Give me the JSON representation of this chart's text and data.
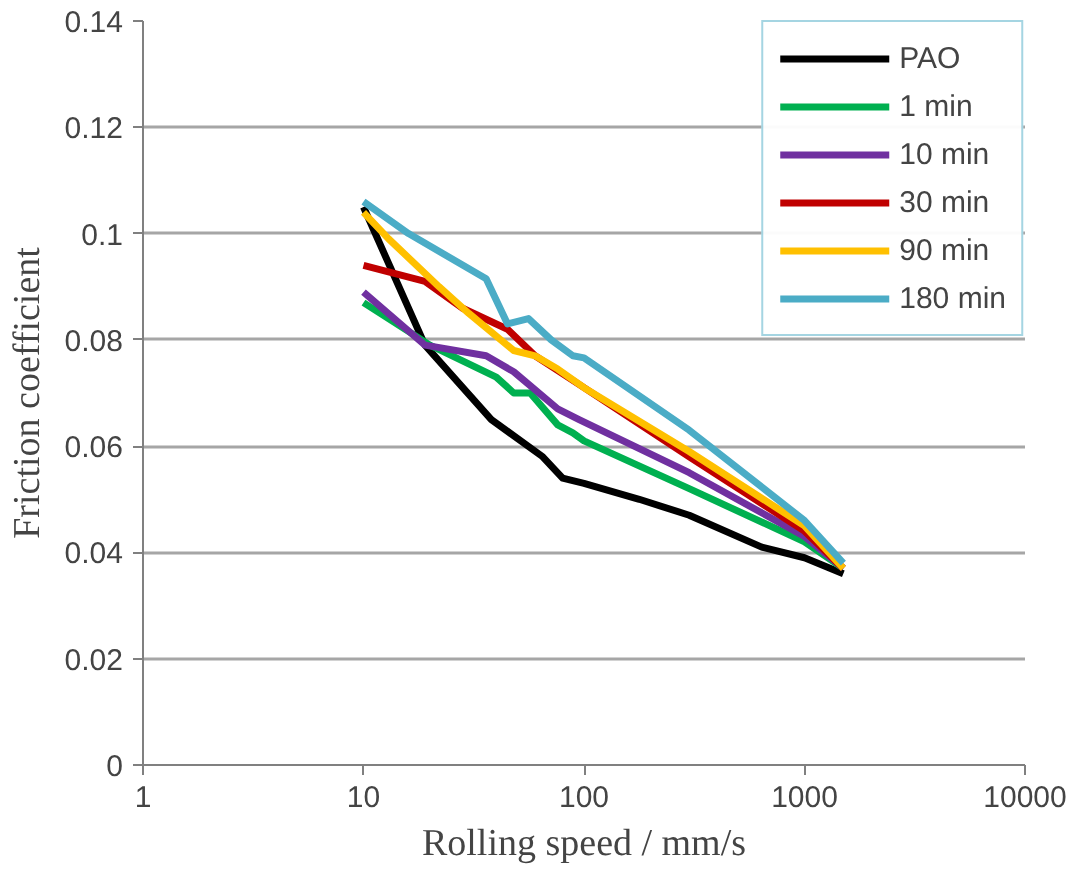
{
  "chart_data": {
    "type": "line",
    "xlabel": "Rolling speed / mm/s",
    "ylabel": "Friction coefficient",
    "log": "x",
    "grid": "y",
    "legend": "top right",
    "marker": "none",
    "line_style": "solid",
    "xlim": [
      1,
      10000
    ],
    "xticks": [
      1,
      10,
      100,
      1000,
      10000
    ],
    "ylim": [
      0,
      0.14
    ],
    "yticks": [
      0,
      0.02,
      0.04,
      0.06,
      0.08,
      0.1,
      0.12,
      0.14
    ],
    "series": [
      {
        "name": "PAO",
        "color": "#000000",
        "x": [
          10,
          19,
          38,
          65,
          80,
          100,
          178,
          300,
          640,
          1000,
          1500
        ],
        "values": [
          0.105,
          0.079,
          0.065,
          0.058,
          0.054,
          0.053,
          0.05,
          0.047,
          0.041,
          0.039,
          0.036
        ]
      },
      {
        "name": "1 min",
        "color": "#00b050",
        "x": [
          10,
          20,
          40,
          48,
          57,
          76,
          89,
          100,
          300,
          1000,
          1500
        ],
        "values": [
          0.087,
          0.079,
          0.073,
          0.07,
          0.07,
          0.064,
          0.0625,
          0.061,
          0.052,
          0.042,
          0.037
        ]
      },
      {
        "name": "10 min",
        "color": "#7030a0",
        "x": [
          10,
          19,
          36,
          48,
          76,
          95,
          300,
          1000,
          1500
        ],
        "values": [
          0.089,
          0.079,
          0.077,
          0.074,
          0.067,
          0.065,
          0.055,
          0.043,
          0.037
        ]
      },
      {
        "name": "30 min",
        "color": "#c00000",
        "x": [
          10,
          19,
          28,
          45,
          60,
          100,
          300,
          1000,
          1500
        ],
        "values": [
          0.094,
          0.091,
          0.086,
          0.082,
          0.077,
          0.071,
          0.058,
          0.044,
          0.037
        ]
      },
      {
        "name": "90 min",
        "color": "#ffc000",
        "x": [
          10,
          13,
          22,
          30,
          48,
          60,
          76,
          100,
          300,
          1000,
          1500
        ],
        "values": [
          0.104,
          0.099,
          0.09,
          0.085,
          0.078,
          0.077,
          0.0745,
          0.071,
          0.059,
          0.045,
          0.037
        ]
      },
      {
        "name": "180 min",
        "color": "#4bacc6",
        "x": [
          10,
          16,
          36,
          45,
          56,
          71,
          89,
          100,
          300,
          1000,
          1500
        ],
        "values": [
          0.106,
          0.1,
          0.0915,
          0.083,
          0.084,
          0.08,
          0.077,
          0.0766,
          0.063,
          0.046,
          0.038
        ]
      }
    ]
  }
}
